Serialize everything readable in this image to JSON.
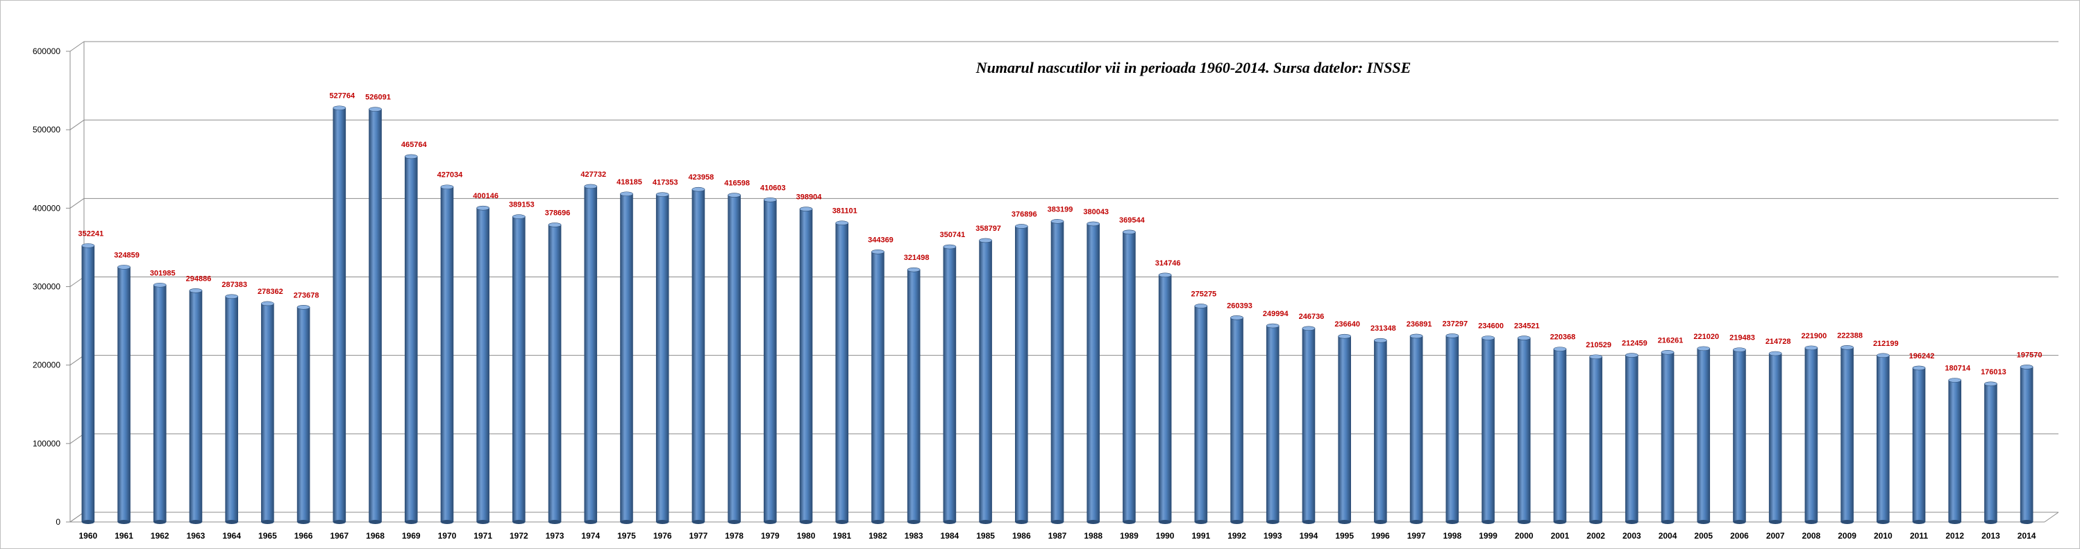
{
  "chart_data": {
    "type": "bar",
    "title": "Numarul nascutilor vii in perioada 1960-2014. Sursa datelor: INSSE",
    "xlabel": "",
    "ylabel": "",
    "ylim": [
      0,
      600000
    ],
    "yticks": [
      "0",
      "100000",
      "200000",
      "300000",
      "400000",
      "500000",
      "600000"
    ],
    "grid": true,
    "legend": "none",
    "categories": [
      "1960",
      "1961",
      "1962",
      "1963",
      "1964",
      "1965",
      "1966",
      "1967",
      "1968",
      "1969",
      "1970",
      "1971",
      "1972",
      "1973",
      "1974",
      "1975",
      "1976",
      "1977",
      "1978",
      "1979",
      "1980",
      "1981",
      "1982",
      "1983",
      "1984",
      "1985",
      "1986",
      "1987",
      "1988",
      "1989",
      "1990",
      "1991",
      "1992",
      "1993",
      "1994",
      "1995",
      "1996",
      "1997",
      "1998",
      "1999",
      "2000",
      "2001",
      "2002",
      "2003",
      "2004",
      "2005",
      "2006",
      "2007",
      "2008",
      "2009",
      "2010",
      "2011",
      "2012",
      "2013",
      "2014"
    ],
    "values": [
      352241,
      324859,
      301985,
      294886,
      287383,
      278362,
      273678,
      527764,
      526091,
      465764,
      427034,
      400146,
      389153,
      378696,
      427732,
      418185,
      417353,
      423958,
      416598,
      410603,
      398904,
      381101,
      344369,
      321498,
      350741,
      358797,
      376896,
      383199,
      380043,
      369544,
      314746,
      275275,
      260393,
      249994,
      246736,
      236640,
      231348,
      236891,
      237297,
      234600,
      234521,
      220368,
      210529,
      212459,
      216261,
      221020,
      219483,
      214728,
      221900,
      222388,
      212199,
      196242,
      180714,
      176013,
      197570
    ],
    "colors": {
      "bar": "#4f81bd",
      "bar_dark": "#2c4d75",
      "bar_light": "#8db3e2",
      "data_label": "#c00000",
      "grid": "#8c8c8c"
    }
  }
}
